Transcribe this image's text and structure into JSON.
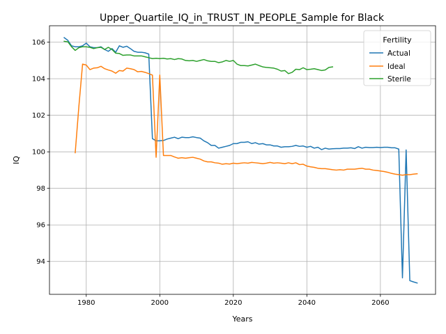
{
  "chart_data": {
    "type": "line",
    "title": "Upper_Quartile_IQ_in_TRUST_IN_PEOPLE_Sample for Black",
    "xlabel": "Years",
    "ylabel": "IQ",
    "xlim": [
      1970,
      2075
    ],
    "ylim": [
      92.2,
      106.9
    ],
    "xticks": [
      1980,
      2000,
      2020,
      2040,
      2060
    ],
    "yticks": [
      94,
      96,
      98,
      100,
      102,
      104,
      106
    ],
    "grid": true,
    "legend": {
      "title": "Fertility",
      "placement": "top-right"
    },
    "series": [
      {
        "name": "Actual",
        "color": "#1f77b4",
        "x": [
          1974,
          1975,
          1976,
          1977,
          1978,
          1979,
          1980,
          1981,
          1982,
          1983,
          1984,
          1985,
          1986,
          1987,
          1988,
          1989,
          1990,
          1991,
          1992,
          1993,
          1994,
          1995,
          1996,
          1997,
          1998,
          1999,
          2000,
          2001,
          2002,
          2003,
          2004,
          2005,
          2006,
          2007,
          2008,
          2009,
          2010,
          2011,
          2012,
          2013,
          2014,
          2015,
          2016,
          2017,
          2018,
          2019,
          2020,
          2021,
          2022,
          2023,
          2024,
          2025,
          2026,
          2027,
          2028,
          2029,
          2030,
          2031,
          2032,
          2033,
          2034,
          2035,
          2036,
          2037,
          2038,
          2039,
          2040,
          2041,
          2042,
          2043,
          2044,
          2045,
          2046,
          2047,
          2048,
          2049,
          2050,
          2051,
          2052,
          2053,
          2054,
          2055,
          2056,
          2057,
          2058,
          2059,
          2060,
          2061,
          2062,
          2063,
          2064,
          2065,
          2066,
          2067,
          2068,
          2069,
          2070
        ],
        "y": [
          106.25,
          106.1,
          105.8,
          105.75,
          105.75,
          105.8,
          105.95,
          105.75,
          105.7,
          105.7,
          105.75,
          105.6,
          105.5,
          105.65,
          105.45,
          105.8,
          105.72,
          105.78,
          105.65,
          105.5,
          105.45,
          105.45,
          105.42,
          105.35,
          100.72,
          100.6,
          100.6,
          100.62,
          100.7,
          100.75,
          100.8,
          100.72,
          100.8,
          100.78,
          100.78,
          100.82,
          100.78,
          100.75,
          100.6,
          100.5,
          100.35,
          100.35,
          100.2,
          100.25,
          100.3,
          100.35,
          100.45,
          100.45,
          100.52,
          100.52,
          100.55,
          100.45,
          100.5,
          100.42,
          100.45,
          100.38,
          100.38,
          100.32,
          100.32,
          100.25,
          100.28,
          100.28,
          100.3,
          100.35,
          100.3,
          100.32,
          100.25,
          100.3,
          100.2,
          100.25,
          100.12,
          100.2,
          100.15,
          100.17,
          100.18,
          100.18,
          100.2,
          100.2,
          100.22,
          100.18,
          100.28,
          100.2,
          100.25,
          100.23,
          100.23,
          100.25,
          100.23,
          100.25,
          100.25,
          100.22,
          100.22,
          100.15,
          93.1,
          100.1,
          92.95,
          92.88,
          92.82
        ]
      },
      {
        "name": "Ideal",
        "color": "#ff7f0e",
        "x": [
          1977,
          1978,
          1979,
          1980,
          1981,
          1982,
          1983,
          1984,
          1985,
          1986,
          1987,
          1988,
          1989,
          1990,
          1991,
          1992,
          1993,
          1994,
          1995,
          1996,
          1997,
          1998,
          1999,
          2000,
          2001,
          2002,
          2003,
          2004,
          2005,
          2006,
          2007,
          2008,
          2009,
          2010,
          2011,
          2012,
          2013,
          2014,
          2015,
          2016,
          2017,
          2018,
          2019,
          2020,
          2021,
          2022,
          2023,
          2024,
          2025,
          2026,
          2027,
          2028,
          2029,
          2030,
          2031,
          2032,
          2033,
          2034,
          2035,
          2036,
          2037,
          2038,
          2039,
          2040,
          2041,
          2042,
          2043,
          2044,
          2045,
          2046,
          2047,
          2048,
          2049,
          2050,
          2051,
          2052,
          2053,
          2054,
          2055,
          2056,
          2057,
          2058,
          2059,
          2060,
          2061,
          2062,
          2063,
          2064,
          2065,
          2066,
          2067,
          2068,
          2069,
          2070
        ],
        "y": [
          99.95,
          102.5,
          104.8,
          104.75,
          104.5,
          104.58,
          104.6,
          104.68,
          104.55,
          104.48,
          104.42,
          104.3,
          104.45,
          104.42,
          104.58,
          104.55,
          104.5,
          104.38,
          104.4,
          104.35,
          104.28,
          104.2,
          99.7,
          104.2,
          99.8,
          99.8,
          99.8,
          99.72,
          99.65,
          99.68,
          99.65,
          99.68,
          99.7,
          99.65,
          99.6,
          99.5,
          99.45,
          99.45,
          99.4,
          99.38,
          99.32,
          99.35,
          99.33,
          99.38,
          99.35,
          99.38,
          99.4,
          99.38,
          99.42,
          99.4,
          99.38,
          99.35,
          99.38,
          99.42,
          99.38,
          99.4,
          99.38,
          99.35,
          99.4,
          99.35,
          99.4,
          99.3,
          99.32,
          99.22,
          99.18,
          99.15,
          99.1,
          99.08,
          99.08,
          99.05,
          99.02,
          99.0,
          99.02,
          99.0,
          99.05,
          99.05,
          99.05,
          99.08,
          99.1,
          99.05,
          99.05,
          99.0,
          98.98,
          98.95,
          98.92,
          98.88,
          98.82,
          98.78,
          98.75,
          98.72,
          98.75,
          98.75,
          98.78,
          98.8
        ],
        "note_y": []
      },
      {
        "name": "Sterile",
        "color": "#2ca02c",
        "x": [
          1974,
          1975,
          1976,
          1977,
          1978,
          1979,
          1980,
          1981,
          1982,
          1983,
          1984,
          1985,
          1986,
          1987,
          1988,
          1989,
          1990,
          1991,
          1992,
          1993,
          1994,
          1995,
          1996,
          1997,
          1998,
          1999,
          2000,
          2001,
          2002,
          2003,
          2004,
          2005,
          2006,
          2007,
          2008,
          2009,
          2010,
          2011,
          2012,
          2013,
          2014,
          2015,
          2016,
          2017,
          2018,
          2019,
          2020,
          2021,
          2022,
          2023,
          2024,
          2025,
          2026,
          2027,
          2028,
          2029,
          2030,
          2031,
          2032,
          2033,
          2034,
          2035,
          2036,
          2037,
          2038,
          2039,
          2040,
          2041,
          2042,
          2043,
          2044,
          2045,
          2046,
          2047
        ],
        "y": [
          106.05,
          106.02,
          105.75,
          105.55,
          105.7,
          105.75,
          105.75,
          105.72,
          105.65,
          105.7,
          105.72,
          105.6,
          105.72,
          105.6,
          105.4,
          105.38,
          105.28,
          105.3,
          105.3,
          105.25,
          105.25,
          105.25,
          105.2,
          105.15,
          105.1,
          105.12,
          105.1,
          105.12,
          105.08,
          105.1,
          105.05,
          105.1,
          105.08,
          105.0,
          104.98,
          105.0,
          104.95,
          105.0,
          105.05,
          104.98,
          104.95,
          104.95,
          104.88,
          104.92,
          105.0,
          104.95,
          105.0,
          104.8,
          104.72,
          104.72,
          104.7,
          104.75,
          104.8,
          104.72,
          104.65,
          104.62,
          104.6,
          104.58,
          104.52,
          104.42,
          104.45,
          104.28,
          104.35,
          104.52,
          104.5,
          104.6,
          104.5,
          104.52,
          104.55,
          104.5,
          104.45,
          104.48,
          104.62,
          104.65
        ]
      }
    ]
  }
}
